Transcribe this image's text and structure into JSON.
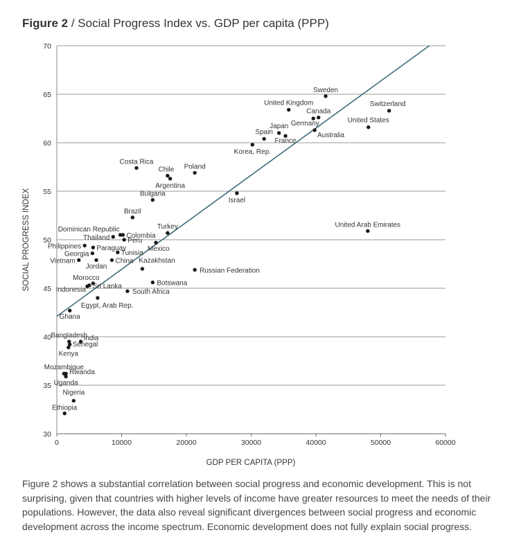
{
  "figure": {
    "number": "Figure 2",
    "separator": " / ",
    "title_main": "Social Progress Index",
    "title_rest": " vs. GDP per capita (PPP)"
  },
  "caption": "Figure 2 shows a substantial correlation between social progress and economic development. This is not surprising, given that countries with higher levels of income have greater resources to meet the needs of their populations. However, the data also reveal significant divergences between social progress and economic development across the income spectrum. Economic development does not fully explain social progress.",
  "chart_data": {
    "type": "scatter",
    "xlabel": "GDP PER CAPITA (PPP)",
    "ylabel": "SOCIAL PROGRESS INDEX",
    "xlim": [
      0,
      60000
    ],
    "ylim": [
      30,
      70
    ],
    "xticks": [
      0,
      10000,
      20000,
      30000,
      40000,
      50000,
      60000
    ],
    "yticks": [
      30,
      35,
      40,
      45,
      50,
      55,
      60,
      65,
      70
    ],
    "grid": "horizontal",
    "colors": {
      "points": "#1a1a1a",
      "trendline": "#3f6b7a",
      "grid": "#9a9a9a",
      "text": "#333333"
    },
    "trendline": {
      "x": [
        0,
        57500
      ],
      "y": [
        42.1,
        70
      ]
    },
    "points": [
      {
        "label": "Sweden",
        "x": 41500,
        "y": 64.8
      },
      {
        "label": "United Kingdom",
        "x": 35800,
        "y": 63.4
      },
      {
        "label": "Canada",
        "x": 40400,
        "y": 62.6
      },
      {
        "label": "Switzerland",
        "x": 51300,
        "y": 63.3
      },
      {
        "label": "Germany",
        "x": 39600,
        "y": 62.5
      },
      {
        "label": "United States",
        "x": 48100,
        "y": 61.6
      },
      {
        "label": "Japan",
        "x": 34300,
        "y": 61.0
      },
      {
        "label": "Spain",
        "x": 32000,
        "y": 60.4
      },
      {
        "label": "France",
        "x": 35300,
        "y": 60.7
      },
      {
        "label": "Australia",
        "x": 39800,
        "y": 61.3
      },
      {
        "label": "Korea, Rep.",
        "x": 30200,
        "y": 59.8
      },
      {
        "label": "Costa Rica",
        "x": 12300,
        "y": 57.4
      },
      {
        "label": "Poland",
        "x": 21300,
        "y": 56.9
      },
      {
        "label": "Chile",
        "x": 17100,
        "y": 56.6
      },
      {
        "label": "Argentina",
        "x": 17500,
        "y": 56.3
      },
      {
        "label": "Bulgaria",
        "x": 14800,
        "y": 54.1
      },
      {
        "label": "Israel",
        "x": 27800,
        "y": 54.8
      },
      {
        "label": "Brazil",
        "x": 11700,
        "y": 52.3
      },
      {
        "label": "Dominican Republic",
        "x": 9800,
        "y": 50.5
      },
      {
        "label": "Colombia",
        "x": 10200,
        "y": 50.5
      },
      {
        "label": "Thailand",
        "x": 8700,
        "y": 50.3
      },
      {
        "label": "Peru",
        "x": 10400,
        "y": 50.0
      },
      {
        "label": "Turkey",
        "x": 17100,
        "y": 50.7
      },
      {
        "label": "Mexico",
        "x": 15300,
        "y": 49.7
      },
      {
        "label": "United Arab Emirates",
        "x": 48000,
        "y": 50.9
      },
      {
        "label": "Philippines",
        "x": 4300,
        "y": 49.4
      },
      {
        "label": "Paraguay",
        "x": 5600,
        "y": 49.2
      },
      {
        "label": "Georgia",
        "x": 5500,
        "y": 48.6
      },
      {
        "label": "Tunisia",
        "x": 9400,
        "y": 48.7
      },
      {
        "label": "Vietnam",
        "x": 3400,
        "y": 47.9
      },
      {
        "label": "Jordan",
        "x": 6100,
        "y": 47.9
      },
      {
        "label": "China",
        "x": 8500,
        "y": 47.9
      },
      {
        "label": "Kazakhstan",
        "x": 13200,
        "y": 47.0
      },
      {
        "label": "Russian Federation",
        "x": 21300,
        "y": 46.9
      },
      {
        "label": "Morocco",
        "x": 5600,
        "y": 45.5
      },
      {
        "label": "Sri Lanka",
        "x": 5000,
        "y": 45.3
      },
      {
        "label": "Indonesia",
        "x": 4700,
        "y": 45.2
      },
      {
        "label": "Botswana",
        "x": 14800,
        "y": 45.6
      },
      {
        "label": "South Africa",
        "x": 10900,
        "y": 44.7
      },
      {
        "label": "Egypt, Arab Rep.",
        "x": 6300,
        "y": 44.0
      },
      {
        "label": "Ghana",
        "x": 2000,
        "y": 42.7
      },
      {
        "label": "Bangladesh",
        "x": 1900,
        "y": 39.5
      },
      {
        "label": "India",
        "x": 3700,
        "y": 39.5
      },
      {
        "label": "Senegal",
        "x": 2000,
        "y": 39.2
      },
      {
        "label": "Kenya",
        "x": 1800,
        "y": 38.9
      },
      {
        "label": "Mozambique",
        "x": 1100,
        "y": 36.2
      },
      {
        "label": "Rwanda",
        "x": 1400,
        "y": 36.2
      },
      {
        "label": "Uganda",
        "x": 1400,
        "y": 35.9
      },
      {
        "label": "Nigeria",
        "x": 2600,
        "y": 33.4
      },
      {
        "label": "Ethiopia",
        "x": 1200,
        "y": 32.1
      }
    ]
  }
}
